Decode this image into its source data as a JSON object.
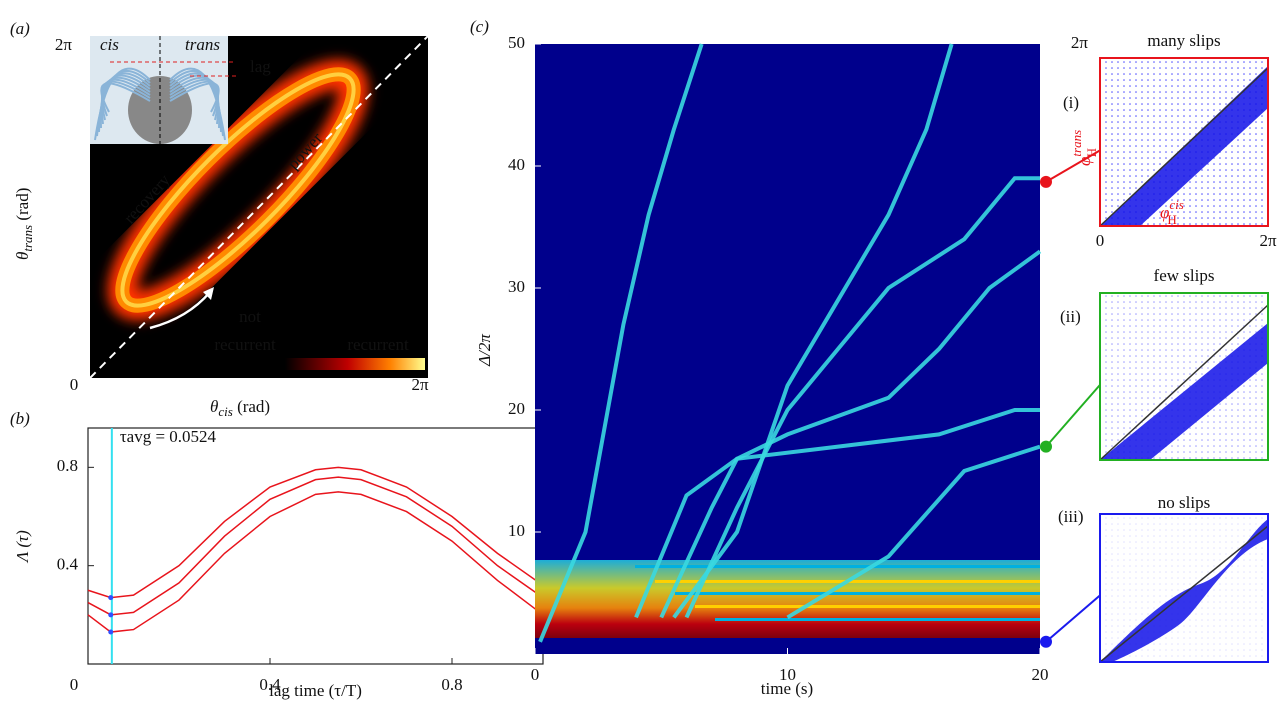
{
  "chart_data": [
    {
      "type": "heatmap",
      "panel": "(a)",
      "xlabel": {
        "symbol": "θ",
        "sub": "cis",
        "unit": " (rad)"
      },
      "ylabel": {
        "symbol": "θ",
        "sub": "trans",
        "unit": " (rad)"
      },
      "xlim": [
        0,
        6.283
      ],
      "ylim": [
        0,
        6.283
      ],
      "xticks": [
        0,
        {
          "value": 6.283,
          "label": "2π"
        }
      ],
      "yticks": [
        {
          "value": 6.283,
          "label": "2π"
        }
      ],
      "inset_labels": [
        "cis",
        "trans",
        "lag"
      ],
      "annotations": [
        "recovery",
        "power",
        "not",
        "recurrent"
      ],
      "colorbar_label": "recurrent"
    },
    {
      "type": "line",
      "panel": "(b)",
      "xlabel": "lag time (τ/T)",
      "ylabel": "Λ (τ)",
      "xlim": [
        0,
        1
      ],
      "ylim": [
        0,
        0.96
      ],
      "xticks": [
        0,
        0.4,
        0.8
      ],
      "yticks": [
        0.4,
        0.8
      ],
      "marker_line": {
        "value": 0.0524,
        "label": "τavg = 0.0524",
        "color": "#33e0f0"
      },
      "x": [
        0,
        0.05,
        0.1,
        0.2,
        0.3,
        0.4,
        0.5,
        0.55,
        0.6,
        0.7,
        0.8,
        0.9,
        1.0
      ],
      "series": [
        {
          "color": "#e8141c",
          "values": [
            0.3,
            0.27,
            0.28,
            0.4,
            0.58,
            0.72,
            0.79,
            0.8,
            0.79,
            0.72,
            0.6,
            0.45,
            0.32
          ]
        },
        {
          "color": "#e8141c",
          "values": [
            0.25,
            0.2,
            0.21,
            0.33,
            0.52,
            0.67,
            0.75,
            0.76,
            0.75,
            0.68,
            0.56,
            0.4,
            0.27
          ]
        },
        {
          "color": "#e8141c",
          "values": [
            0.2,
            0.13,
            0.14,
            0.26,
            0.45,
            0.6,
            0.69,
            0.7,
            0.69,
            0.62,
            0.5,
            0.34,
            0.2
          ]
        }
      ]
    },
    {
      "type": "heatmap",
      "panel": "(c)",
      "xlabel": "time (s)",
      "ylabel": "Δ/2π",
      "xlim": [
        0,
        20
      ],
      "ylim": [
        0,
        50
      ],
      "xticks": [
        0,
        10,
        20
      ],
      "yticks": [
        10,
        20,
        30,
        40,
        50
      ],
      "series": [
        {
          "color": "#3ad8e0",
          "x": [
            0.2,
            2,
            3.5,
            4.5,
            5.5,
            6.6
          ],
          "values": [
            1,
            10,
            27,
            36,
            43,
            50
          ]
        },
        {
          "color": "#3ad8e0",
          "x": [
            5.5,
            8,
            10,
            12,
            14,
            15.5,
            16.5
          ],
          "values": [
            3,
            10,
            22,
            29,
            36,
            43,
            50
          ]
        },
        {
          "color": "#3ad8e0",
          "x": [
            6,
            8,
            10,
            12,
            14,
            17,
            19,
            20
          ],
          "values": [
            3,
            12,
            20,
            25,
            30,
            34,
            39,
            39
          ]
        },
        {
          "color": "#3ad8e0",
          "x": [
            5,
            7,
            8,
            10,
            14,
            16,
            18,
            20
          ],
          "values": [
            3,
            12,
            16,
            18,
            21,
            25,
            30,
            33
          ]
        },
        {
          "color": "#3ad8e0",
          "x": [
            4,
            5,
            6,
            8,
            12,
            16,
            19,
            20
          ],
          "values": [
            3,
            8,
            13,
            16,
            17,
            18,
            20,
            20
          ]
        },
        {
          "color": "#3ad8e0",
          "x": [
            10,
            14,
            17,
            20
          ],
          "values": [
            3,
            8,
            15,
            17
          ]
        }
      ]
    },
    {
      "type": "scatter",
      "panel": "(i)",
      "title": "many slips",
      "color": "#e8141c",
      "linked_value": 38.7,
      "xlim": [
        0,
        6.283
      ],
      "ylim": [
        0,
        6.283
      ],
      "xticks": [
        0,
        {
          "value": 6.283,
          "label": "2π"
        }
      ],
      "yticks": [
        {
          "value": 6.283,
          "label": "2π"
        }
      ],
      "xlabel": {
        "symbol": "φ",
        "sub": "H",
        "sup": "cis"
      },
      "ylabel": {
        "symbol": "φ",
        "sub": "H",
        "sup": "trans"
      }
    },
    {
      "type": "scatter",
      "panel": "(ii)",
      "title": "few slips",
      "color": "#22b022",
      "linked_value": 17
    },
    {
      "type": "scatter",
      "panel": "(iii)",
      "title": "no slips",
      "color": "#1a1aee",
      "linked_value": 1
    }
  ]
}
